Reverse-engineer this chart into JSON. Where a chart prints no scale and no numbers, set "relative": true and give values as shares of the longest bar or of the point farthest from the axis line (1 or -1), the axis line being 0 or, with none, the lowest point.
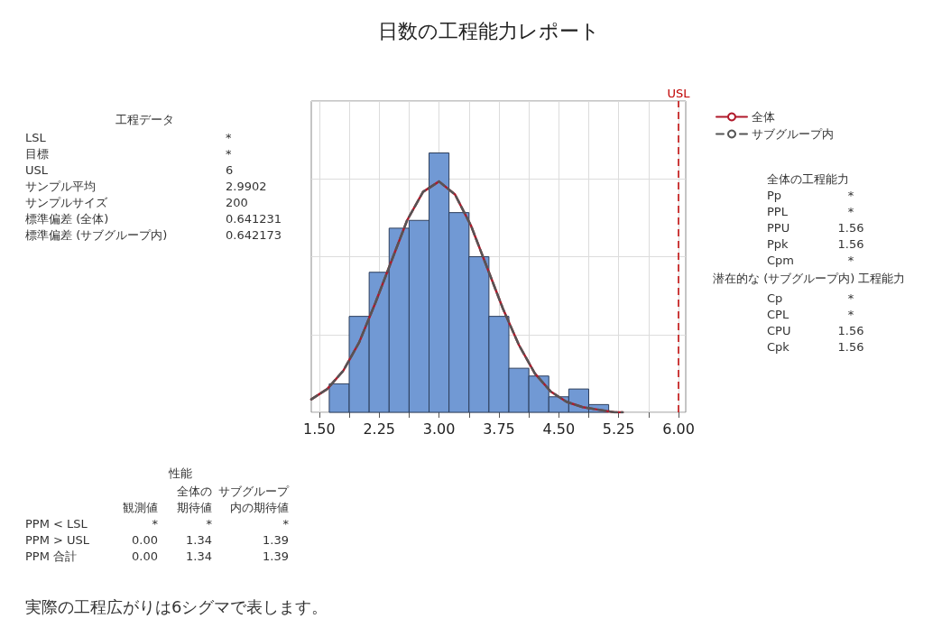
{
  "chart_data": {
    "type": "histogram",
    "title": "日数の工程能力レポート",
    "relative": true,
    "bins": [
      1.625,
      1.875,
      2.125,
      2.375,
      2.625,
      2.875,
      3.125,
      3.375,
      3.625,
      3.875,
      4.125,
      4.375,
      4.625,
      4.875,
      5.125
    ],
    "values": [
      0.11,
      0.37,
      0.54,
      0.71,
      0.74,
      1,
      0.77,
      0.6,
      0.37,
      0.17,
      0.14,
      0.06,
      0.09,
      0.03
    ],
    "color": "#7199d4",
    "series": [
      {
        "name": "全体",
        "type": "line",
        "color": "#b0192a",
        "line_style": "solid",
        "x": [
          1.4,
          1.6,
          1.8,
          2.0,
          2.2,
          2.4,
          2.6,
          2.8,
          3.0,
          3.2,
          3.4,
          3.6,
          3.8,
          4.0,
          4.2,
          4.4,
          4.6,
          4.8,
          5.0,
          5.2,
          5.3
        ],
        "values": [
          0.05,
          0.09,
          0.16,
          0.27,
          0.42,
          0.58,
          0.74,
          0.85,
          0.89,
          0.84,
          0.72,
          0.56,
          0.4,
          0.26,
          0.15,
          0.08,
          0.04,
          0.02,
          0.01,
          0,
          0
        ]
      },
      {
        "name": "サブグループ内",
        "type": "line",
        "color": "#555555",
        "line_style": "dashed",
        "x": [
          1.4,
          1.6,
          1.8,
          2.0,
          2.2,
          2.4,
          2.6,
          2.8,
          3.0,
          3.2,
          3.4,
          3.6,
          3.8,
          4.0,
          4.2,
          4.4,
          4.6,
          4.8,
          5.0,
          5.2,
          5.3
        ],
        "values": [
          0.05,
          0.09,
          0.16,
          0.27,
          0.42,
          0.58,
          0.74,
          0.85,
          0.89,
          0.84,
          0.72,
          0.56,
          0.4,
          0.26,
          0.15,
          0.08,
          0.04,
          0.02,
          0.01,
          0,
          0
        ]
      }
    ],
    "xlim": [
      1.4,
      6.09
    ],
    "xticks": [
      {
        "value": 1.5,
        "label": "1.50"
      },
      {
        "value": 1.875,
        "label": null
      },
      {
        "value": 2.25,
        "label": "2.25"
      },
      {
        "value": 2.625,
        "label": null
      },
      {
        "value": 3,
        "label": "3.00"
      },
      {
        "value": 3.375,
        "label": null
      },
      {
        "value": 3.75,
        "label": "3.75"
      },
      {
        "value": 4.125,
        "label": null
      },
      {
        "value": 4.5,
        "label": "4.50"
      },
      {
        "value": 4.875,
        "label": null
      },
      {
        "value": 5.25,
        "label": "5.25"
      },
      {
        "value": 5.625,
        "label": null
      },
      {
        "value": 6,
        "label": "6.00"
      }
    ],
    "ref_lines": [
      {
        "axis": "x",
        "value": 6,
        "label": "USL",
        "color": "#c00000",
        "line_style": "dashed"
      }
    ],
    "grid": true,
    "legend": "top right",
    "annotations": [
      "工程データ",
      "LSL",
      "*",
      "目標",
      "*",
      "USL",
      "6",
      "サンプル平均",
      "2.9902",
      "サンプルサイズ",
      "200",
      "標準偏差 (全体)",
      "0.641231",
      "標準偏差 (サブグループ内)",
      "0.642173",
      "全体の工程能力",
      "Pp",
      "*",
      "PPL",
      "*",
      "PPU",
      "1.56",
      "Ppk",
      "1.56",
      "Cpm",
      "*",
      "潜在的な (サブグループ内) 工程能力",
      "Cp",
      "*",
      "CPL",
      "*",
      "CPU",
      "1.56",
      "Cpk",
      "1.56",
      "性能",
      "全体の",
      "サブグループ",
      "観測値",
      "期待値",
      "内の期待値",
      "PPM < LSL",
      "*",
      "*",
      "*",
      "PPM > USL",
      "0.00",
      "1.34",
      "1.39",
      "PPM 合計",
      "0.00",
      "1.34",
      "1.39",
      "実際の工程広がりは6シグマで表します。"
    ]
  }
}
